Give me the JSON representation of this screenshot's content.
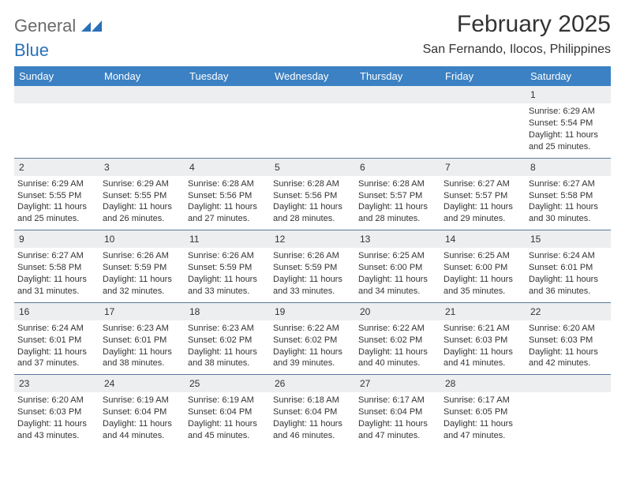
{
  "logo": {
    "line1": "General",
    "line2": "Blue",
    "text_color": "#6a6a6a",
    "accent_color": "#2a71b8"
  },
  "title": {
    "month": "February 2025",
    "location": "San Fernando, Ilocos, Philippines"
  },
  "colors": {
    "header_bg": "#3b81c3",
    "header_text": "#ffffff",
    "daynum_bg": "#eceef0",
    "week_border": "#5a7a99",
    "body_text": "#333333"
  },
  "weekdays": [
    "Sunday",
    "Monday",
    "Tuesday",
    "Wednesday",
    "Thursday",
    "Friday",
    "Saturday"
  ],
  "font": {
    "body_size_pt": 11,
    "daynum_size_pt": 12,
    "weekday_size_pt": 13,
    "title_size_pt": 30,
    "location_size_pt": 16
  },
  "weeks": [
    [
      {
        "day": "",
        "sunrise": "",
        "sunset": "",
        "daylight": ""
      },
      {
        "day": "",
        "sunrise": "",
        "sunset": "",
        "daylight": ""
      },
      {
        "day": "",
        "sunrise": "",
        "sunset": "",
        "daylight": ""
      },
      {
        "day": "",
        "sunrise": "",
        "sunset": "",
        "daylight": ""
      },
      {
        "day": "",
        "sunrise": "",
        "sunset": "",
        "daylight": ""
      },
      {
        "day": "",
        "sunrise": "",
        "sunset": "",
        "daylight": ""
      },
      {
        "day": "1",
        "sunrise": "Sunrise: 6:29 AM",
        "sunset": "Sunset: 5:54 PM",
        "daylight": "Daylight: 11 hours and 25 minutes."
      }
    ],
    [
      {
        "day": "2",
        "sunrise": "Sunrise: 6:29 AM",
        "sunset": "Sunset: 5:55 PM",
        "daylight": "Daylight: 11 hours and 25 minutes."
      },
      {
        "day": "3",
        "sunrise": "Sunrise: 6:29 AM",
        "sunset": "Sunset: 5:55 PM",
        "daylight": "Daylight: 11 hours and 26 minutes."
      },
      {
        "day": "4",
        "sunrise": "Sunrise: 6:28 AM",
        "sunset": "Sunset: 5:56 PM",
        "daylight": "Daylight: 11 hours and 27 minutes."
      },
      {
        "day": "5",
        "sunrise": "Sunrise: 6:28 AM",
        "sunset": "Sunset: 5:56 PM",
        "daylight": "Daylight: 11 hours and 28 minutes."
      },
      {
        "day": "6",
        "sunrise": "Sunrise: 6:28 AM",
        "sunset": "Sunset: 5:57 PM",
        "daylight": "Daylight: 11 hours and 28 minutes."
      },
      {
        "day": "7",
        "sunrise": "Sunrise: 6:27 AM",
        "sunset": "Sunset: 5:57 PM",
        "daylight": "Daylight: 11 hours and 29 minutes."
      },
      {
        "day": "8",
        "sunrise": "Sunrise: 6:27 AM",
        "sunset": "Sunset: 5:58 PM",
        "daylight": "Daylight: 11 hours and 30 minutes."
      }
    ],
    [
      {
        "day": "9",
        "sunrise": "Sunrise: 6:27 AM",
        "sunset": "Sunset: 5:58 PM",
        "daylight": "Daylight: 11 hours and 31 minutes."
      },
      {
        "day": "10",
        "sunrise": "Sunrise: 6:26 AM",
        "sunset": "Sunset: 5:59 PM",
        "daylight": "Daylight: 11 hours and 32 minutes."
      },
      {
        "day": "11",
        "sunrise": "Sunrise: 6:26 AM",
        "sunset": "Sunset: 5:59 PM",
        "daylight": "Daylight: 11 hours and 33 minutes."
      },
      {
        "day": "12",
        "sunrise": "Sunrise: 6:26 AM",
        "sunset": "Sunset: 5:59 PM",
        "daylight": "Daylight: 11 hours and 33 minutes."
      },
      {
        "day": "13",
        "sunrise": "Sunrise: 6:25 AM",
        "sunset": "Sunset: 6:00 PM",
        "daylight": "Daylight: 11 hours and 34 minutes."
      },
      {
        "day": "14",
        "sunrise": "Sunrise: 6:25 AM",
        "sunset": "Sunset: 6:00 PM",
        "daylight": "Daylight: 11 hours and 35 minutes."
      },
      {
        "day": "15",
        "sunrise": "Sunrise: 6:24 AM",
        "sunset": "Sunset: 6:01 PM",
        "daylight": "Daylight: 11 hours and 36 minutes."
      }
    ],
    [
      {
        "day": "16",
        "sunrise": "Sunrise: 6:24 AM",
        "sunset": "Sunset: 6:01 PM",
        "daylight": "Daylight: 11 hours and 37 minutes."
      },
      {
        "day": "17",
        "sunrise": "Sunrise: 6:23 AM",
        "sunset": "Sunset: 6:01 PM",
        "daylight": "Daylight: 11 hours and 38 minutes."
      },
      {
        "day": "18",
        "sunrise": "Sunrise: 6:23 AM",
        "sunset": "Sunset: 6:02 PM",
        "daylight": "Daylight: 11 hours and 38 minutes."
      },
      {
        "day": "19",
        "sunrise": "Sunrise: 6:22 AM",
        "sunset": "Sunset: 6:02 PM",
        "daylight": "Daylight: 11 hours and 39 minutes."
      },
      {
        "day": "20",
        "sunrise": "Sunrise: 6:22 AM",
        "sunset": "Sunset: 6:02 PM",
        "daylight": "Daylight: 11 hours and 40 minutes."
      },
      {
        "day": "21",
        "sunrise": "Sunrise: 6:21 AM",
        "sunset": "Sunset: 6:03 PM",
        "daylight": "Daylight: 11 hours and 41 minutes."
      },
      {
        "day": "22",
        "sunrise": "Sunrise: 6:20 AM",
        "sunset": "Sunset: 6:03 PM",
        "daylight": "Daylight: 11 hours and 42 minutes."
      }
    ],
    [
      {
        "day": "23",
        "sunrise": "Sunrise: 6:20 AM",
        "sunset": "Sunset: 6:03 PM",
        "daylight": "Daylight: 11 hours and 43 minutes."
      },
      {
        "day": "24",
        "sunrise": "Sunrise: 6:19 AM",
        "sunset": "Sunset: 6:04 PM",
        "daylight": "Daylight: 11 hours and 44 minutes."
      },
      {
        "day": "25",
        "sunrise": "Sunrise: 6:19 AM",
        "sunset": "Sunset: 6:04 PM",
        "daylight": "Daylight: 11 hours and 45 minutes."
      },
      {
        "day": "26",
        "sunrise": "Sunrise: 6:18 AM",
        "sunset": "Sunset: 6:04 PM",
        "daylight": "Daylight: 11 hours and 46 minutes."
      },
      {
        "day": "27",
        "sunrise": "Sunrise: 6:17 AM",
        "sunset": "Sunset: 6:04 PM",
        "daylight": "Daylight: 11 hours and 47 minutes."
      },
      {
        "day": "28",
        "sunrise": "Sunrise: 6:17 AM",
        "sunset": "Sunset: 6:05 PM",
        "daylight": "Daylight: 11 hours and 47 minutes."
      },
      {
        "day": "",
        "sunrise": "",
        "sunset": "",
        "daylight": ""
      }
    ]
  ]
}
